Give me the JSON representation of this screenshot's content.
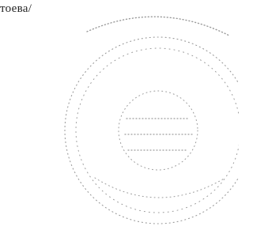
{
  "document": {
    "text": "тоева/"
  }
}
